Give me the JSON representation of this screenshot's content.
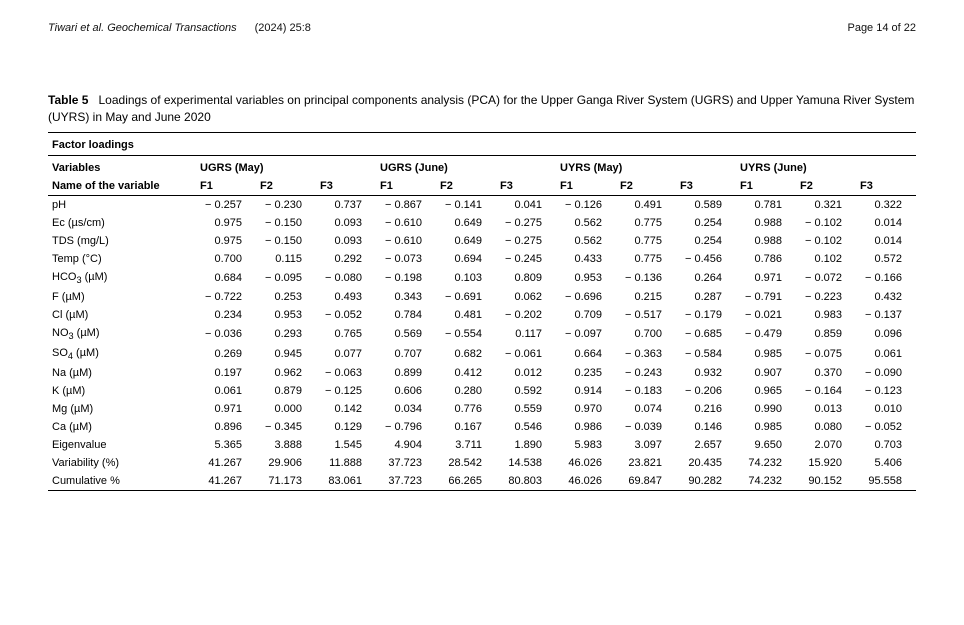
{
  "runningHead": {
    "authors": "Tiwari et al. Geochemical Transactions",
    "issue": "(2024) 25:8",
    "pageLabel": "Page 14 of 22"
  },
  "caption": {
    "label": "Table 5",
    "text": "Loadings of experimental variables on principal components analysis (PCA) for the Upper Ganga River System (UGRS) and Upper Yamuna River System (UYRS) in May and June 2020"
  },
  "table": {
    "sectionTitle": "Factor loadings",
    "varHeader": "Variables",
    "nameHeader": "Name of the variable",
    "groups": [
      "UGRS (May)",
      "UGRS (June)",
      "UYRS (May)",
      "UYRS (June)"
    ],
    "factors": [
      "F1",
      "F2",
      "F3",
      "F1",
      "F2",
      "F3",
      "F1",
      "F2",
      "F3",
      "F1",
      "F2",
      "F3"
    ],
    "rows": [
      {
        "name": "pH",
        "v": [
          "− 0.257",
          "− 0.230",
          "0.737",
          "− 0.867",
          "− 0.141",
          "0.041",
          "− 0.126",
          "0.491",
          "0.589",
          "0.781",
          "0.321",
          "0.322"
        ]
      },
      {
        "name": "Ec (µs/cm)",
        "v": [
          "0.975",
          "− 0.150",
          "0.093",
          "− 0.610",
          "0.649",
          "− 0.275",
          "0.562",
          "0.775",
          "0.254",
          "0.988",
          "− 0.102",
          "0.014"
        ]
      },
      {
        "name": "TDS (mg/L)",
        "v": [
          "0.975",
          "− 0.150",
          "0.093",
          "− 0.610",
          "0.649",
          "− 0.275",
          "0.562",
          "0.775",
          "0.254",
          "0.988",
          "− 0.102",
          "0.014"
        ]
      },
      {
        "name": "Temp (°C)",
        "v": [
          "0.700",
          "0.115",
          "0.292",
          "− 0.073",
          "0.694",
          "− 0.245",
          "0.433",
          "0.775",
          "− 0.456",
          "0.786",
          "0.102",
          "0.572"
        ]
      },
      {
        "name": "HCO3 (µM)",
        "v": [
          "0.684",
          "− 0.095",
          "− 0.080",
          "− 0.198",
          "0.103",
          "0.809",
          "0.953",
          "− 0.136",
          "0.264",
          "0.971",
          "− 0.072",
          "− 0.166"
        ],
        "sub": "HCO3"
      },
      {
        "name": "F (µM)",
        "v": [
          "− 0.722",
          "0.253",
          "0.493",
          "0.343",
          "− 0.691",
          "0.062",
          "− 0.696",
          "0.215",
          "0.287",
          "− 0.791",
          "− 0.223",
          "0.432"
        ]
      },
      {
        "name": "Cl (µM)",
        "v": [
          "0.234",
          "0.953",
          "− 0.052",
          "0.784",
          "0.481",
          "− 0.202",
          "0.709",
          "− 0.517",
          "− 0.179",
          "− 0.021",
          "0.983",
          "− 0.137"
        ]
      },
      {
        "name": "NO3 (µM)",
        "v": [
          "− 0.036",
          "0.293",
          "0.765",
          "0.569",
          "− 0.554",
          "0.117",
          "− 0.097",
          "0.700",
          "− 0.685",
          "− 0.479",
          "0.859",
          "0.096"
        ],
        "sub": "NO3"
      },
      {
        "name": "SO4 (µM)",
        "v": [
          "0.269",
          "0.945",
          "0.077",
          "0.707",
          "0.682",
          "− 0.061",
          "0.664",
          "− 0.363",
          "− 0.584",
          "0.985",
          "− 0.075",
          "0.061"
        ],
        "sub": "SO4"
      },
      {
        "name": "Na (µM)",
        "v": [
          "0.197",
          "0.962",
          "− 0.063",
          "0.899",
          "0.412",
          "0.012",
          "0.235",
          "− 0.243",
          "0.932",
          "0.907",
          "0.370",
          "− 0.090"
        ]
      },
      {
        "name": "K (µM)",
        "v": [
          "0.061",
          "0.879",
          "− 0.125",
          "0.606",
          "0.280",
          "0.592",
          "0.914",
          "− 0.183",
          "− 0.206",
          "0.965",
          "− 0.164",
          "− 0.123"
        ]
      },
      {
        "name": "Mg (µM)",
        "v": [
          "0.971",
          "0.000",
          "0.142",
          "0.034",
          "0.776",
          "0.559",
          "0.970",
          "0.074",
          "0.216",
          "0.990",
          "0.013",
          "0.010"
        ]
      },
      {
        "name": "Ca (µM)",
        "v": [
          "0.896",
          "− 0.345",
          "0.129",
          "− 0.796",
          "0.167",
          "0.546",
          "0.986",
          "− 0.039",
          "0.146",
          "0.985",
          "0.080",
          "− 0.052"
        ]
      },
      {
        "name": "Eigenvalue",
        "v": [
          "5.365",
          "3.888",
          "1.545",
          "4.904",
          "3.711",
          "1.890",
          "5.983",
          "3.097",
          "2.657",
          "9.650",
          "2.070",
          "0.703"
        ]
      },
      {
        "name": "Variability (%)",
        "v": [
          "41.267",
          "29.906",
          "11.888",
          "37.723",
          "28.542",
          "14.538",
          "46.026",
          "23.821",
          "20.435",
          "74.232",
          "15.920",
          "5.406"
        ]
      },
      {
        "name": "Cumulative %",
        "v": [
          "41.267",
          "71.173",
          "83.061",
          "37.723",
          "66.265",
          "80.803",
          "46.026",
          "69.847",
          "90.282",
          "74.232",
          "90.152",
          "95.558"
        ]
      }
    ]
  }
}
